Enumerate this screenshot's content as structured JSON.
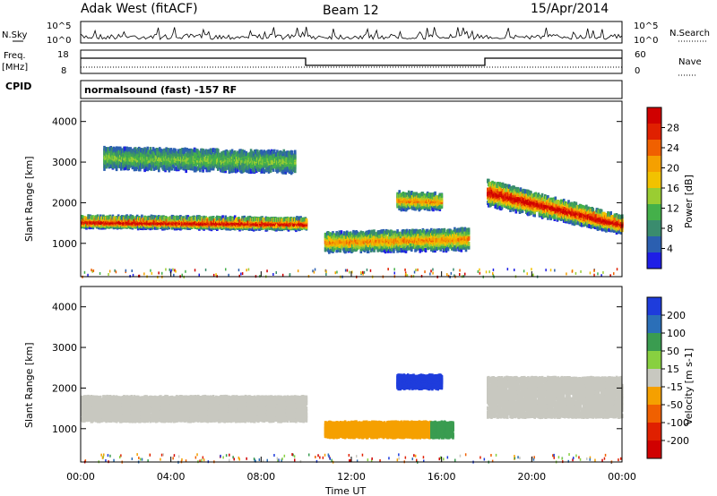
{
  "header": {
    "station": "Adak West (fitACF)",
    "beam": "Beam 12",
    "date": "15/Apr/2014"
  },
  "top_panels": {
    "nsky_label": "N.Sky",
    "nsky_ticks": [
      "10^5",
      "10^0"
    ],
    "nsearch_label": "N.Search",
    "freq_label_1": "Freq.",
    "freq_label_2": "[MHz]",
    "freq_ticks": [
      "18",
      "8"
    ],
    "nave_label": "Nave",
    "nave_ticks": [
      "60",
      "0"
    ],
    "cpid_label": "CPID",
    "cpid_text": "normalsound (fast) -157 RF"
  },
  "chart_data": [
    {
      "type": "heatmap",
      "name": "power",
      "ylabel": "Slant Range [km]",
      "ylim": [
        180,
        4500
      ],
      "yticks": [
        "1000",
        "2000",
        "3000",
        "4000"
      ],
      "xlim": [
        "00:00",
        "24:00"
      ],
      "colorbar_label": "Power [dB]",
      "colorbar_ticks": [
        "4",
        "8",
        "12",
        "16",
        "20",
        "24",
        "28"
      ],
      "colorbar_colors": [
        "#1e1ee6",
        "#2b5fb0",
        "#3a8c6e",
        "#44b04a",
        "#9acd32",
        "#f2c200",
        "#f5a000",
        "#f06000",
        "#e02000",
        "#d00000"
      ],
      "features": [
        {
          "t": [
            0,
            10
          ],
          "range_start": [
            1450,
            1600
          ],
          "range_end": [
            1400,
            1550
          ],
          "intensity": "high"
        },
        {
          "t": [
            1,
            9.5
          ],
          "range_start": [
            2900,
            3300
          ],
          "range_end": [
            2800,
            3200
          ],
          "intensity": "low"
        },
        {
          "t": [
            10.8,
            17.2
          ],
          "range_start": [
            850,
            1200
          ],
          "range_end": [
            900,
            1300
          ],
          "intensity": "medium"
        },
        {
          "t": [
            14,
            16
          ],
          "range_start": [
            1900,
            2200
          ],
          "range_end": [
            1900,
            2150
          ],
          "intensity": "medium"
        },
        {
          "t": [
            18,
            24
          ],
          "range_start": [
            2000,
            2500
          ],
          "range_end": [
            1300,
            1600
          ],
          "intensity": "high"
        }
      ]
    },
    {
      "type": "heatmap",
      "name": "velocity",
      "ylabel": "Slant Range [km]",
      "ylim": [
        180,
        4500
      ],
      "yticks": [
        "1000",
        "2000",
        "3000",
        "4000"
      ],
      "xlabel": "Time UT",
      "xticks": [
        "00:00",
        "04:00",
        "08:00",
        "12:00",
        "16:00",
        "20:00",
        "00:00"
      ],
      "colorbar_label": "Velocity [m s-1]",
      "colorbar_ticks": [
        "200",
        "100",
        "50",
        "15",
        "-15",
        "-50",
        "-100",
        "-200"
      ],
      "colorbar_colors": [
        "#1e3cdc",
        "#2b6fb8",
        "#3a9c50",
        "#88d040",
        "#c8c8c0",
        "#f5a000",
        "#f06000",
        "#e02000",
        "#d00000"
      ],
      "features": [
        {
          "t": [
            0,
            10
          ],
          "range": [
            1200,
            1800
          ],
          "velocity": "near-zero"
        },
        {
          "t": [
            10.8,
            15.5
          ],
          "range": [
            800,
            1150
          ],
          "velocity": -40
        },
        {
          "t": [
            14,
            16
          ],
          "range": [
            2000,
            2300
          ],
          "velocity": 180
        },
        {
          "t": [
            15.5,
            16.5
          ],
          "range": [
            800,
            1150
          ],
          "velocity": 30
        },
        {
          "t": [
            18,
            24
          ],
          "range": [
            1300,
            2300
          ],
          "velocity": "near-zero"
        }
      ]
    }
  ],
  "colors": {
    "frame": "#000000",
    "background": "#ffffff"
  }
}
